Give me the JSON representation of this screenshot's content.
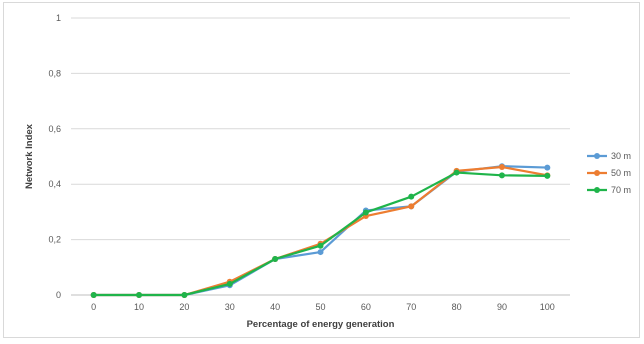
{
  "chart_data": {
    "type": "line",
    "xlabel": "Percentage of energy generation",
    "ylabel": "Network Index",
    "x": [
      "0",
      "10",
      "20",
      "30",
      "40",
      "50",
      "60",
      "70",
      "80",
      "90",
      "100"
    ],
    "y_ticks": [
      "0",
      "0,2",
      "0,4",
      "0,6",
      "0,8",
      "1"
    ],
    "ylim": [
      0,
      1
    ],
    "grid": {
      "horizontal": true,
      "vertical": false
    },
    "legend": {
      "placement": "right"
    },
    "series": [
      {
        "name": "30 m",
        "color": "#5b9bd5",
        "values": [
          0,
          0,
          0,
          0.035,
          0.13,
          0.155,
          0.305,
          0.32,
          0.445,
          0.465,
          0.46
        ]
      },
      {
        "name": "50 m",
        "color": "#ed7d31",
        "values": [
          0,
          0,
          0,
          0.048,
          0.13,
          0.185,
          0.285,
          0.32,
          0.448,
          0.462,
          0.432
        ]
      },
      {
        "name": "70 m",
        "color": "#1fb44a",
        "values": [
          0,
          0,
          0,
          0.04,
          0.13,
          0.178,
          0.298,
          0.355,
          0.442,
          0.432,
          0.43
        ]
      }
    ]
  }
}
